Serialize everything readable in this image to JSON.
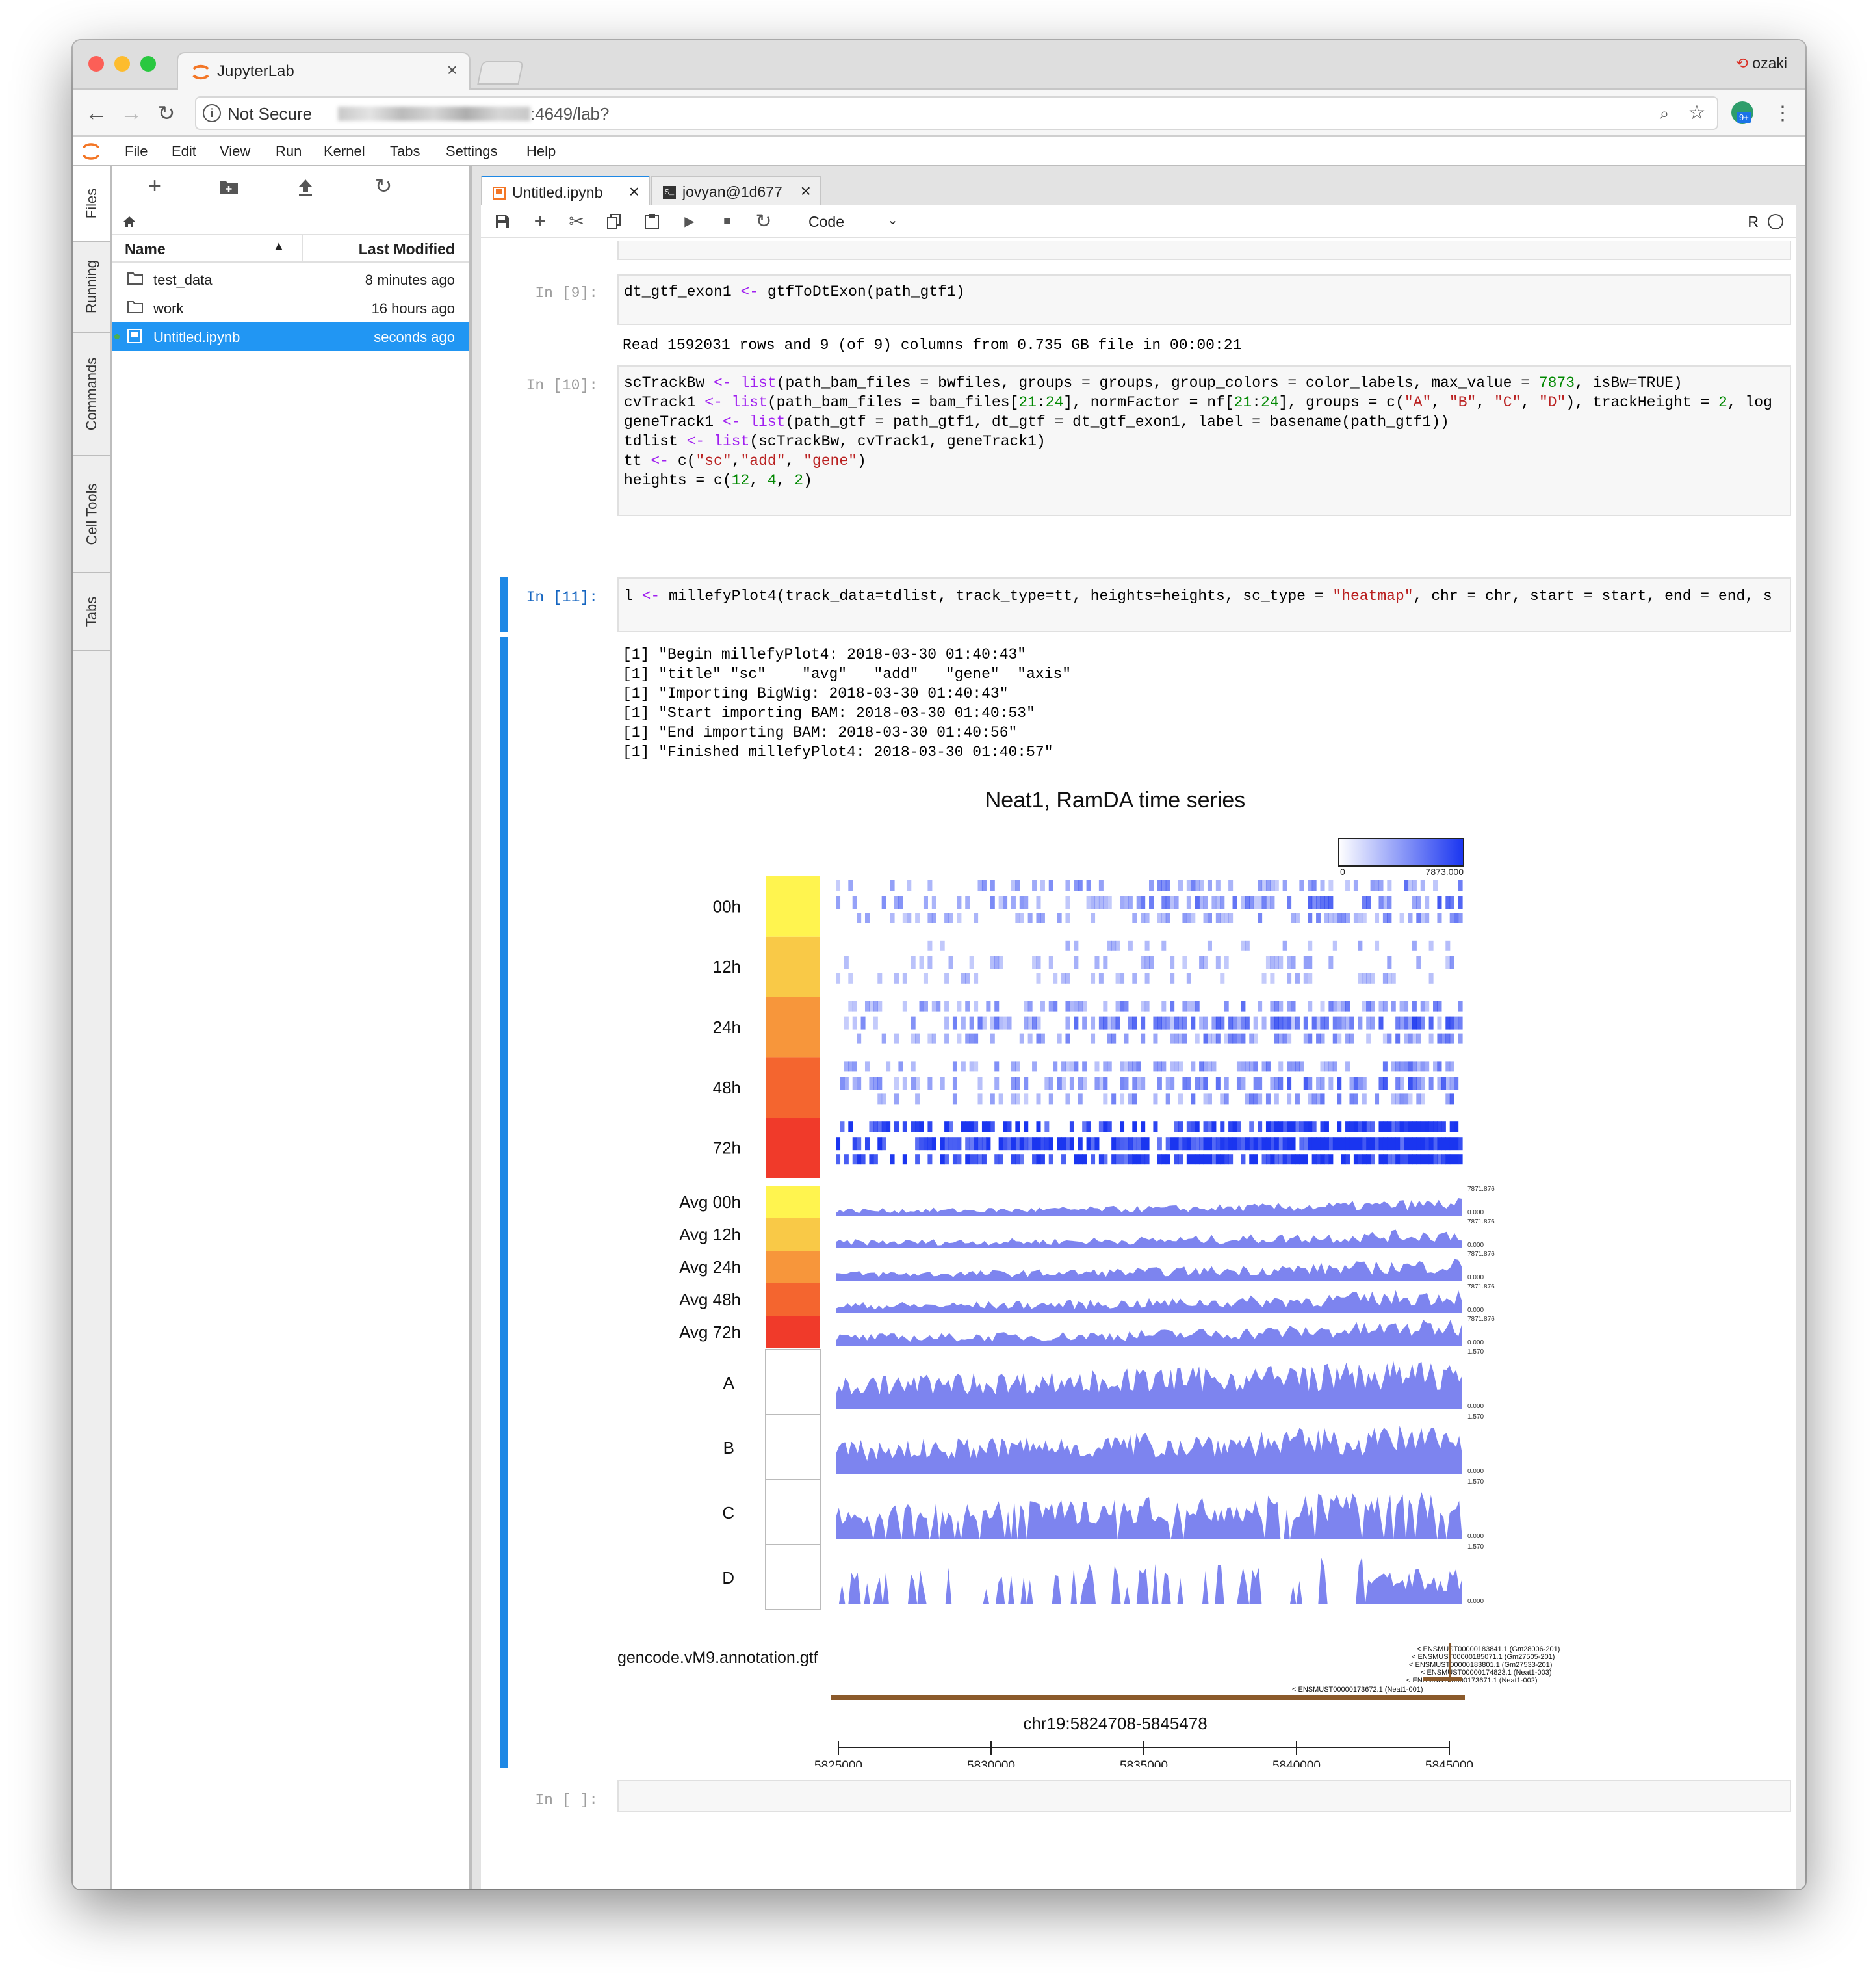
{
  "browser": {
    "tab_title": "JupyterLab",
    "tab_close": "×",
    "user": "ozaki",
    "security": "Not Secure",
    "url_tail": ":4649/lab?",
    "ext_badge": "9+"
  },
  "menu": [
    "File",
    "Edit",
    "View",
    "Run",
    "Kernel",
    "Tabs",
    "Settings",
    "Help"
  ],
  "sidebar_tabs": [
    "Files",
    "Running",
    "Commands",
    "Cell Tools",
    "Tabs"
  ],
  "filebrowser": {
    "col_name": "Name",
    "col_modified": "Last Modified",
    "files": [
      {
        "name": "test_data",
        "modified": "8 minutes ago",
        "type": "folder"
      },
      {
        "name": "work",
        "modified": "16 hours ago",
        "type": "folder"
      },
      {
        "name": "Untitled.ipynb",
        "modified": "seconds ago",
        "type": "notebook",
        "selected": true
      }
    ]
  },
  "doc_tabs": [
    {
      "label": "Untitled.ipynb",
      "close": "×"
    },
    {
      "label": "jovyan@1d677",
      "close": "×"
    }
  ],
  "notebook": {
    "cell_type": "Code",
    "kernel": "R",
    "cells": {
      "c9_prompt": "In [9]:",
      "c9_output": "Read 1592031 rows and 9 (of 9) columns from 0.735 GB file in 00:00:21",
      "c10_prompt": "In [10]:",
      "c11_prompt": "In [11]:",
      "c11_output": "[1] \"Begin millefyPlot4: 2018-03-30 01:40:43\"\n[1] \"title\" \"sc\"    \"avg\"   \"add\"   \"gene\"  \"axis\"\n[1] \"Importing BigWig: 2018-03-30 01:40:43\"\n[1] \"Start importing BAM: 2018-03-30 01:40:53\"\n[1] \"End importing BAM: 2018-03-30 01:40:56\"\n[1] \"Finished millefyPlot4: 2018-03-30 01:40:57\"",
      "empty_prompt": "In [ ]:"
    }
  },
  "figure": {
    "title": "Neat1, RamDA time series",
    "scale_min": "0",
    "scale_max": "7873.000",
    "sc_groups": [
      "00h",
      "12h",
      "24h",
      "48h",
      "72h"
    ],
    "sc_colors": [
      "#fff44f",
      "#f9c947",
      "#f7963b",
      "#f4652f",
      "#f03a2a"
    ],
    "avg_groups": [
      "Avg 00h",
      "Avg 12h",
      "Avg 24h",
      "Avg 48h",
      "Avg 72h"
    ],
    "avg_max": "7871.876",
    "avg_min": "0.000",
    "add_groups": [
      "A",
      "B",
      "C",
      "D"
    ],
    "add_max": "1.570",
    "add_min": "0.000",
    "gene_label": "gencode.vM9.annotation.gtf",
    "transcripts": [
      "< ENSMUST00000183841.1 (Gm28006-201)",
      "< ENSMUST00000185071.1 (Gm27505-201)",
      "< ENSMUST00000183801.1 (Gm27533-201)",
      "< ENSMUST00000174823.1 (Neat1-003)",
      "< ENSMUST00000173671.1 (Neat1-002)",
      "< ENSMUST00000173672.1 (Neat1-001)"
    ],
    "region": "chr19:5824708-5845478",
    "ticks": [
      "5825000",
      "5830000",
      "5835000",
      "5840000",
      "5845000"
    ]
  },
  "colors": {
    "accent": "#1e88e5",
    "heat": "#1a35f0",
    "signal": "#7d84ef",
    "gene": "#8b5a2b"
  }
}
